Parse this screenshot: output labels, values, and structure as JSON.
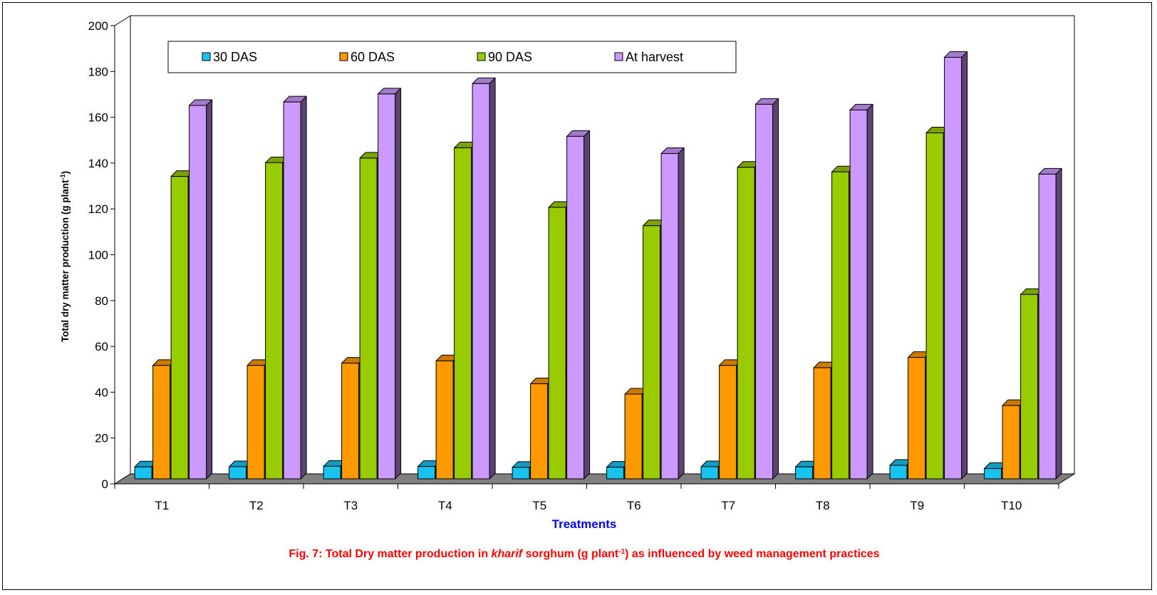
{
  "chart_data": {
    "type": "bar",
    "categories": [
      "T1",
      "T2",
      "T3",
      "T4",
      "T5",
      "T6",
      "T7",
      "T8",
      "T9",
      "T10"
    ],
    "series": [
      {
        "name": "30 DAS",
        "color": "#19c3f0",
        "values": [
          5.2,
          5.3,
          5.5,
          5.4,
          5.0,
          5.1,
          5.3,
          5.2,
          5.9,
          4.5
        ]
      },
      {
        "name": "60 DAS",
        "color": "#ff9900",
        "values": [
          49.5,
          49.5,
          50.5,
          51.5,
          41.5,
          37.0,
          49.5,
          48.5,
          53.0,
          32.0
        ]
      },
      {
        "name": "90 DAS",
        "color": "#99cc00",
        "values": [
          132,
          138,
          140,
          144.5,
          118.5,
          110.5,
          136,
          134,
          151,
          80.5
        ]
      },
      {
        "name": "At harvest",
        "color": "#cc99ff",
        "values": [
          163,
          164.5,
          168,
          172.5,
          149.5,
          142,
          163.5,
          161,
          184,
          133
        ]
      }
    ],
    "ylim": [
      0,
      200
    ],
    "yticks": [
      "0",
      "20",
      "40",
      "60",
      "80",
      "100",
      "120",
      "140",
      "160",
      "180",
      "200"
    ],
    "xlabel": "Treatments",
    "ylabel_main": "Total dry matter production (g plant",
    "ylabel_sup": "-1",
    "ylabel_end": ")",
    "legend_position": "top",
    "grid": false,
    "style_3d": true
  },
  "caption": {
    "part1": "Fig. 7: Total Dry matter production in ",
    "italic": "kharif",
    "part2": " sorghum (g plant",
    "sup": "-1",
    "part3": ") as influenced by weed management practices"
  }
}
